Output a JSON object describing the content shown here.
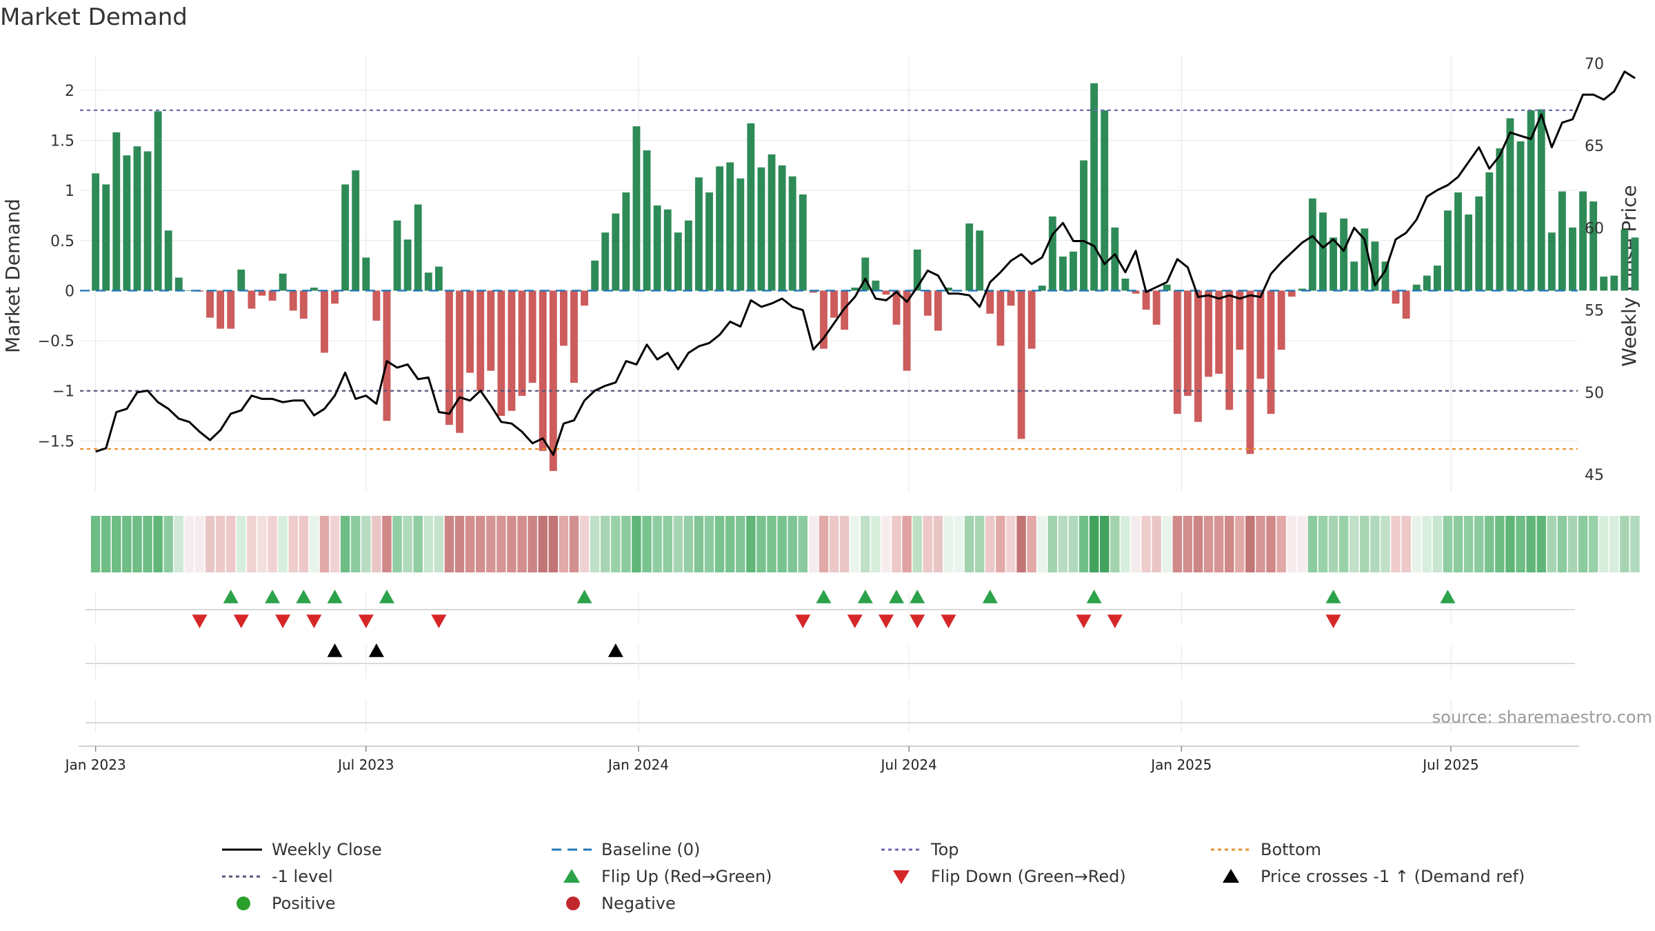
{
  "chart_data": {
    "type": "bar",
    "title": "Market Demand",
    "ylabel": "Market Demand",
    "y2label": "Weekly Close Price",
    "ylim": [
      -2.0,
      2.35
    ],
    "y2lim": [
      44,
      70.5
    ],
    "yticks": [
      -1.5,
      -1,
      -0.5,
      0,
      0.5,
      1,
      1.5,
      2
    ],
    "ytick_labels": [
      "−1.5",
      "−1",
      "−0.5",
      "0",
      "0.5",
      "1",
      "1.5",
      "2"
    ],
    "y2ticks": [
      45,
      50,
      55,
      60,
      65,
      70
    ],
    "y2tick_labels": [
      "45",
      "50",
      "55",
      "60",
      "65",
      "70"
    ],
    "x_range_weeks": [
      -1.5,
      142.5
    ],
    "xticks": [
      {
        "label": "Jan 2023",
        "week": 0
      },
      {
        "label": "Jul 2023",
        "week": 26
      },
      {
        "label": "Jan 2024",
        "week": 52.2
      },
      {
        "label": "Jul 2024",
        "week": 78.2
      },
      {
        "label": "Jan 2025",
        "week": 104.4
      },
      {
        "label": "Jul 2025",
        "week": 130.3
      }
    ],
    "reference_lines": {
      "baseline": 0,
      "top": 1.8,
      "minus_one": -1,
      "bottom": -1.58
    },
    "demand": [
      1.17,
      1.06,
      1.58,
      1.35,
      1.44,
      1.39,
      1.79,
      0.6,
      0.13,
      0,
      -0.01,
      -0.27,
      -0.38,
      -0.38,
      0.21,
      -0.18,
      -0.05,
      -0.1,
      0.17,
      -0.2,
      -0.28,
      0.03,
      -0.62,
      -0.13,
      1.06,
      1.2,
      0.33,
      -0.3,
      -1.3,
      0.7,
      0.51,
      0.86,
      0.18,
      0.24,
      -1.34,
      -1.42,
      -0.82,
      -1.0,
      -0.8,
      -1.25,
      -1.2,
      -1.05,
      -0.92,
      -1.6,
      -1.8,
      -0.55,
      -0.92,
      -0.15,
      0.3,
      0.58,
      0.77,
      0.98,
      1.64,
      1.4,
      0.85,
      0.81,
      0.58,
      0.7,
      1.13,
      0.98,
      1.24,
      1.28,
      1.12,
      1.67,
      1.23,
      1.36,
      1.25,
      1.14,
      0.96,
      -0.02,
      -0.58,
      -0.27,
      -0.39,
      0.03,
      0.33,
      0.1,
      -0.04,
      -0.34,
      -0.8,
      0.41,
      -0.25,
      -0.4,
      0.03,
      0,
      0.67,
      0.6,
      -0.23,
      -0.55,
      -0.15,
      -1.48,
      -0.58,
      0.05,
      0.74,
      0.34,
      0.39,
      1.3,
      2.07,
      1.8,
      0.63,
      0.12,
      -0.03,
      -0.19,
      -0.34,
      0.06,
      -1.23,
      -1.05,
      -1.31,
      -0.86,
      -0.83,
      -1.19,
      -0.59,
      -1.63,
      -0.88,
      -1.23,
      -0.59,
      -0.06,
      0.02,
      0.92,
      0.78,
      0.53,
      0.72,
      0.29,
      0.62,
      0.49,
      0.29,
      -0.13,
      -0.28,
      0.06,
      0.15,
      0.25,
      0.8,
      0.98,
      0.76,
      0.94,
      1.18,
      1.42,
      1.72,
      1.49,
      1.8,
      1.81,
      0.58,
      0.99,
      0.63,
      0.99,
      0.89,
      0.14,
      0.15,
      0.61,
      0.53
    ],
    "close": [
      46.4,
      46.6,
      48.8,
      49.0,
      50.0,
      50.1,
      49.4,
      49.0,
      48.4,
      48.2,
      47.6,
      47.1,
      47.7,
      48.7,
      48.9,
      49.8,
      49.6,
      49.6,
      49.4,
      49.5,
      49.5,
      48.6,
      49.0,
      49.8,
      51.2,
      49.6,
      49.8,
      49.3,
      51.9,
      51.5,
      51.7,
      50.8,
      50.9,
      48.8,
      48.7,
      49.7,
      49.5,
      50.1,
      49.2,
      48.2,
      48.1,
      47.6,
      46.9,
      47.2,
      46.2,
      48.1,
      48.3,
      49.5,
      50.1,
      50.4,
      50.6,
      51.9,
      51.7,
      52.9,
      52.0,
      52.4,
      51.4,
      52.4,
      52.8,
      53.0,
      53.5,
      54.3,
      54.0,
      55.6,
      55.2,
      55.4,
      55.7,
      55.2,
      55.0,
      52.6,
      53.3,
      54.2,
      55.1,
      55.8,
      56.9,
      55.7,
      55.6,
      56.1,
      55.5,
      56.4,
      57.4,
      57.1,
      56.0,
      56.0,
      55.9,
      55.2,
      56.7,
      57.3,
      58.0,
      58.4,
      57.8,
      58.2,
      59.6,
      60.3,
      59.2,
      59.2,
      58.9,
      57.8,
      58.4,
      57.3,
      58.6,
      56.1,
      56.4,
      56.7,
      58.1,
      57.6,
      55.8,
      55.9,
      55.7,
      55.9,
      55.7,
      55.9,
      55.8,
      57.2,
      57.9,
      58.5,
      59.1,
      59.5,
      58.8,
      59.3,
      58.6,
      60.0,
      59.3,
      56.5,
      57.4,
      59.3,
      59.7,
      60.5,
      61.9,
      62.3,
      62.6,
      63.1,
      64.0,
      64.9,
      63.6,
      64.4,
      65.8,
      65.6,
      65.4,
      66.9,
      64.9,
      66.4,
      66.6,
      68.1,
      68.1,
      67.8,
      68.3,
      69.5,
      69.1
    ],
    "heatmap_colors": [
      "#6dbd85",
      "#6dbd85",
      "#6dbd85",
      "#6dbd85",
      "#6dbd85",
      "#6dbd85",
      "#5fb678",
      "#8ccb9f",
      "#cfe9d6",
      "#f6eced",
      "#f6eced",
      "#e9c6c6",
      "#ecc8c8",
      "#ecc8c8",
      "#d8eedd",
      "#f1d2d2",
      "#f4dfdf",
      "#f1d2d2",
      "#d8eedd",
      "#efcdcd",
      "#ecc8c8",
      "#e8f4eb",
      "#e2a9a9",
      "#f1d2d2",
      "#6dbd85",
      "#8ccb9f",
      "#b7dcc1",
      "#e9c6c6",
      "#d08989",
      "#90cda2",
      "#b1d9bd",
      "#90cda2",
      "#c7e5cf",
      "#c5e3cc",
      "#cc8585",
      "#cc8585",
      "#d38f8f",
      "#d38f8f",
      "#d69494",
      "#d69494",
      "#d38f8f",
      "#d38f8f",
      "#cc8585",
      "#c17575",
      "#c17575",
      "#e2a9a9",
      "#d09090",
      "#f1d2d2",
      "#c0e0c8",
      "#a7d5b3",
      "#99d1a8",
      "#8ccb9f",
      "#5fb678",
      "#79c38f",
      "#90cda2",
      "#90cda2",
      "#a7d5b3",
      "#96cfa7",
      "#81c597",
      "#8ccb9f",
      "#79c38f",
      "#79c38f",
      "#81c597",
      "#5fb678",
      "#79c38f",
      "#79c38f",
      "#79c38f",
      "#81c597",
      "#8ccb9f",
      "#f6eced",
      "#e2a9a9",
      "#ecc8c8",
      "#e9c6c6",
      "#eaf5ee",
      "#bfe0c7",
      "#d8eedd",
      "#f6eced",
      "#ecc8c8",
      "#e0a2a2",
      "#bde0c5",
      "#ecc8c8",
      "#e9c6c6",
      "#e8f4eb",
      "#eaf5ee",
      "#a1d3ae",
      "#a7d5b3",
      "#ecc8c8",
      "#e2a9a9",
      "#f1d2d2",
      "#c17575",
      "#e2a9a9",
      "#e8f4eb",
      "#a1d3ae",
      "#b7dcc1",
      "#b1d9bd",
      "#71bf88",
      "#42a35e",
      "#42a35e",
      "#a1d3ae",
      "#d8eedd",
      "#f6eced",
      "#efcdcd",
      "#e9c6c6",
      "#e8f4eb",
      "#d08989",
      "#d38f8f",
      "#cc8585",
      "#d69494",
      "#d69494",
      "#d08989",
      "#e2a9a9",
      "#c17575",
      "#d69494",
      "#d08989",
      "#e2a9a9",
      "#f6eced",
      "#f6eced",
      "#8ccb9f",
      "#99d1a8",
      "#a7d5b3",
      "#99d1a8",
      "#c0e0c8",
      "#a7d5b3",
      "#b1d9bd",
      "#c0e0c8",
      "#efcdcd",
      "#ecc8c8",
      "#e8f4eb",
      "#d8eedd",
      "#c7e5cf",
      "#90cda2",
      "#8ccb9f",
      "#90cda2",
      "#8ccb9f",
      "#79c38f",
      "#6dbd85",
      "#5fb678",
      "#6dbd85",
      "#5fb678",
      "#5fb678",
      "#a7d5b3",
      "#8ccb9f",
      "#a7d5b3",
      "#8ccb9f",
      "#99d1a8",
      "#d8eedd",
      "#d8eedd",
      "#a7d5b3",
      "#b1d9bd"
    ],
    "flip_up_weeks": [
      13,
      17,
      20,
      23,
      28,
      47,
      70,
      74,
      77,
      79,
      86,
      96,
      119,
      130
    ],
    "flip_down_weeks": [
      10,
      14,
      18,
      21,
      26,
      33,
      68,
      73,
      76,
      79,
      82,
      95,
      98,
      119
    ],
    "price_cross_weeks": [
      23,
      27,
      50
    ],
    "legend": [
      {
        "label": "Weekly Close",
        "type": "line-solid",
        "color": "#000000"
      },
      {
        "label": "Baseline (0)",
        "type": "line-dash",
        "color": "#1f77b4"
      },
      {
        "label": "Top",
        "type": "line-dot",
        "color": "#6b6bb0"
      },
      {
        "label": "Bottom",
        "type": "line-dot",
        "color": "#e8902a"
      },
      {
        "label": "-1 level",
        "type": "line-dot",
        "color": "#55557a"
      },
      {
        "label": "Flip Up (Red→Green)",
        "type": "tri-up",
        "color": "#2ca24a"
      },
      {
        "label": "Flip Down (Green→Red)",
        "type": "tri-down",
        "color": "#d62728"
      },
      {
        "label": "Price crosses -1 ↑ (Demand ref)",
        "type": "tri-up",
        "color": "#000000"
      },
      {
        "label": "Positive",
        "type": "dot",
        "color": "#2ca02c"
      },
      {
        "label": "Negative",
        "type": "dot",
        "color": "#c0282d"
      }
    ],
    "source": "source: sharemaestro.com"
  },
  "colors": {
    "positive_bar": "#2e8b57",
    "negative_bar": "#cd5c5c",
    "baseline": "#1f77b4",
    "top": "#6b6bb0",
    "minus_one": "#55557a",
    "bottom": "#e8902a",
    "close_line": "#000000",
    "flip_up": "#2ca24a",
    "flip_down": "#d62728",
    "price_cross": "#000000"
  }
}
